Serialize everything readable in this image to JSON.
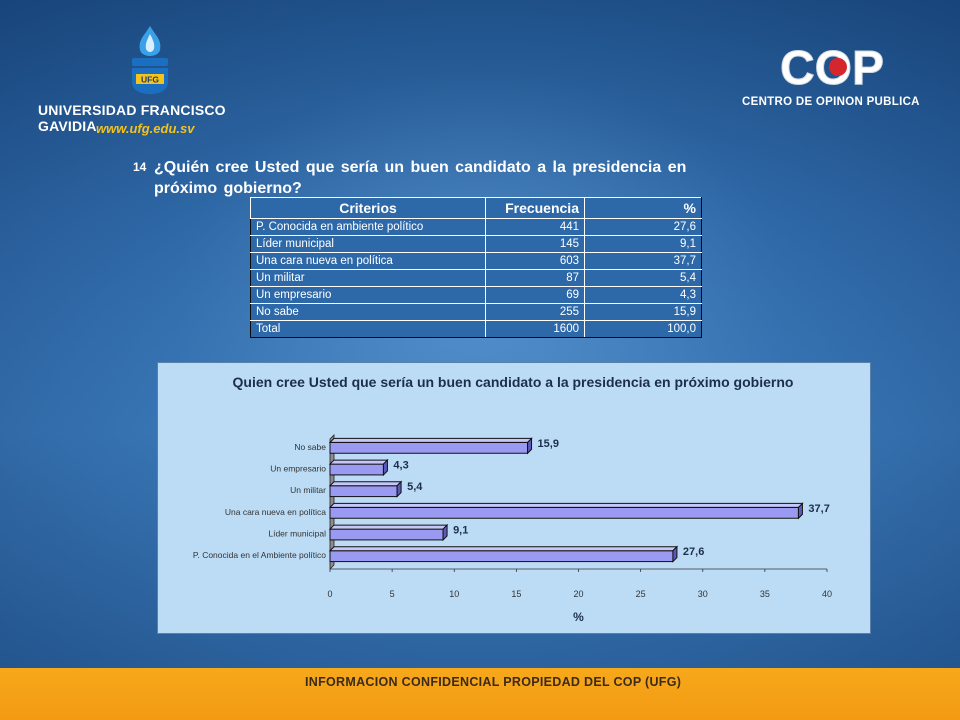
{
  "header": {
    "ufg_name": "UNIVERSIDAD FRANCISCO GAVIDIA",
    "ufg_web": "www.ufg.edu.sv",
    "ufg_emblem_text": "UFG",
    "cop_mark": "COP",
    "cop_name": "CENTRO DE OPINON PUBLICA"
  },
  "question": {
    "number": "14",
    "text": "¿Quién cree Usted que sería un buen candidato a la presidencia en próximo gobierno?"
  },
  "table": {
    "headers": [
      "Criterios",
      "Frecuencia",
      "%"
    ],
    "rows": [
      {
        "criterio": "P. Conocida en ambiente político",
        "frecuencia": "441",
        "pct": "27,6"
      },
      {
        "criterio": "Líder municipal",
        "frecuencia": "145",
        "pct": "9,1"
      },
      {
        "criterio": "Una cara  nueva en política",
        "frecuencia": "603",
        "pct": "37,7"
      },
      {
        "criterio": "Un militar",
        "frecuencia": "87",
        "pct": "5,4"
      },
      {
        "criterio": "Un empresario",
        "frecuencia": "69",
        "pct": "4,3"
      },
      {
        "criterio": "No sabe",
        "frecuencia": "255",
        "pct": "15,9"
      },
      {
        "criterio": "Total",
        "frecuencia": "1600",
        "pct": "100,0"
      }
    ]
  },
  "chart_data": {
    "type": "bar",
    "orientation": "horizontal",
    "title": "Quien cree Usted que sería un buen candidato a la presidencia en próximo gobierno",
    "xlabel": "%",
    "ylabel": "",
    "categories": [
      "P. Conocida en el Ambiente político",
      "Líder municipal",
      "Una cara  nueva en política",
      "Un militar",
      "Un empresario",
      "No sabe"
    ],
    "values": [
      27.6,
      9.1,
      37.7,
      5.4,
      4.3,
      15.9
    ],
    "value_labels": [
      "27,6",
      "9,1",
      "37,7",
      "5,4",
      "4,3",
      "15,9"
    ],
    "xlim": [
      0,
      40
    ],
    "xticks": [
      "0",
      "5",
      "10",
      "15",
      "20",
      "25",
      "30",
      "35",
      "40"
    ],
    "grid": false,
    "legend": "none",
    "bar_color": "#9a9af2",
    "panel_color": "#bcdcf6"
  },
  "footer": {
    "text": "INFORMACION CONFIDENCIAL PROPIEDAD DEL COP (UFG)"
  }
}
